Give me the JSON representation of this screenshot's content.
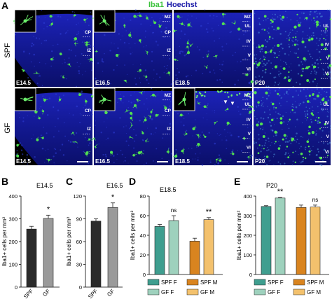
{
  "figure": {
    "panel_letters": [
      "A",
      "B",
      "C",
      "D",
      "E"
    ],
    "stain_header": {
      "iba1": "Iba1",
      "hoechst": "Hoechst",
      "iba1_color": "#3cc23c",
      "hoechst_color": "#1a1aa8"
    },
    "row_labels": [
      "SPF",
      "GF"
    ],
    "micrographs": [
      {
        "age": "E14.5",
        "labels": [
          "CP",
          "IZ"
        ],
        "inset": true
      },
      {
        "age": "E16.5",
        "labels": [
          "MZ",
          "CP",
          "IZ"
        ],
        "inset": true
      },
      {
        "age": "E18.5",
        "labels": [
          "MZ",
          "UL",
          "IV",
          "V",
          "VI"
        ],
        "inset": false
      },
      {
        "age": "P20",
        "labels": [
          "UL",
          "IV",
          "V",
          "VI"
        ],
        "inset": false
      }
    ],
    "gf_micrographs": [
      {
        "age": "E14.5",
        "labels": [
          "CP",
          "IZ"
        ],
        "inset": true
      },
      {
        "age": "E16.5",
        "labels": [
          "MZ",
          "CP",
          "IZ"
        ],
        "inset": true
      },
      {
        "age": "E18.5",
        "labels": [
          "MZ",
          "UL",
          "IV",
          "V",
          "VI"
        ],
        "inset": true
      },
      {
        "age": "P20",
        "labels": [
          "UL",
          "IV",
          "V",
          "VI"
        ],
        "inset": false
      }
    ]
  },
  "chart_data": [
    {
      "panel": "B",
      "type": "bar",
      "title": "E14.5",
      "ylabel": "Iba1+ cells per mm²",
      "ylim": [
        0,
        400
      ],
      "yticks": [
        0,
        100,
        200,
        300,
        400
      ],
      "categories": [
        "SPF",
        "GF"
      ],
      "values": [
        255,
        302
      ],
      "errors": [
        12,
        14
      ],
      "colors": [
        "#2b2b2b",
        "#9a9a9a"
      ],
      "annotations": [
        {
          "text": "*",
          "between": [
            0,
            1
          ]
        }
      ]
    },
    {
      "panel": "C",
      "type": "bar",
      "title": "E16.5",
      "ylabel": "Iba1+ cells per mm²",
      "ylim": [
        0,
        120
      ],
      "yticks": [
        0,
        30,
        60,
        90,
        120
      ],
      "categories": [
        "SPF",
        "GF"
      ],
      "values": [
        87,
        105
      ],
      "errors": [
        3,
        6
      ],
      "colors": [
        "#2b2b2b",
        "#9a9a9a"
      ],
      "annotations": [
        {
          "text": "*",
          "between": [
            0,
            1
          ]
        }
      ]
    },
    {
      "panel": "D",
      "type": "bar",
      "title": "E18.5",
      "ylabel": "Iba1+ cells per mm²",
      "ylim": [
        0,
        80
      ],
      "yticks": [
        0,
        20,
        40,
        60,
        80
      ],
      "series": [
        {
          "name": "SPF F",
          "value": 49,
          "error": 2,
          "color": "#3f9e8f"
        },
        {
          "name": "GF F",
          "value": 55,
          "error": 5,
          "color": "#9ed1bd"
        },
        {
          "name": "SPF M",
          "value": 34,
          "error": 3,
          "color": "#d9841f"
        },
        {
          "name": "GF M",
          "value": 56,
          "error": 2,
          "color": "#f3c16d"
        }
      ],
      "annotations": [
        {
          "text": "ns",
          "between": [
            0,
            1
          ]
        },
        {
          "text": "**",
          "between": [
            2,
            3
          ]
        }
      ],
      "legend": [
        "SPF F",
        "SPF M",
        "GF F",
        "GF M"
      ]
    },
    {
      "panel": "E",
      "type": "bar",
      "title": "P20",
      "ylabel": "Iba1+ cells per mm²",
      "ylim": [
        0,
        400
      ],
      "yticks": [
        0,
        100,
        200,
        300,
        400
      ],
      "series": [
        {
          "name": "SPF F",
          "value": 347,
          "error": 4,
          "color": "#3f9e8f"
        },
        {
          "name": "GF F",
          "value": 390,
          "error": 3,
          "color": "#9ed1bd"
        },
        {
          "name": "SPF M",
          "value": 342,
          "error": 12,
          "color": "#d9841f"
        },
        {
          "name": "GF M",
          "value": 344,
          "error": 10,
          "color": "#f3c16d"
        }
      ],
      "annotations": [
        {
          "text": "**",
          "between": [
            0,
            1
          ]
        },
        {
          "text": "ns",
          "between": [
            2,
            3
          ]
        }
      ],
      "legend": [
        "SPF F",
        "SPF M",
        "GF F",
        "GF M"
      ]
    }
  ]
}
